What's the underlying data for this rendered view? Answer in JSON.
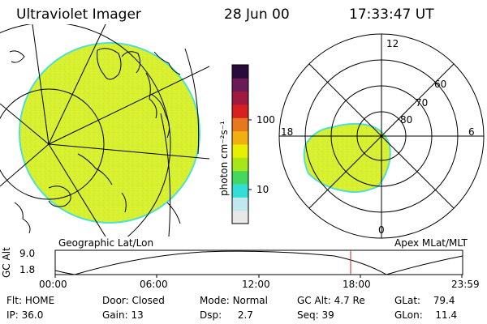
{
  "header": {
    "instrument": "Ultraviolet Imager",
    "date": "28 Jun 00",
    "time": "17:33:47 UT"
  },
  "colorbar": {
    "unit_label": "photon cm⁻²s⁻¹",
    "ticks": [
      "100",
      "10"
    ],
    "colors": [
      "#e8e8e8",
      "#bfe8ef",
      "#33ddd8",
      "#44d860",
      "#a8e61a",
      "#e6f000",
      "#f2b010",
      "#e6781e",
      "#d82020",
      "#a01a40",
      "#6b1a58",
      "#2a0a3a"
    ]
  },
  "geo_map": {
    "label": "Geographic Lat/Lon",
    "fill": "#d8f030",
    "edge": "#4fe0d0"
  },
  "polar_plot": {
    "label": "Apex MLat/MLT",
    "mlt_labels": {
      "top": "12",
      "left": "18",
      "right": "6",
      "bottom": "0"
    },
    "lat_labels": [
      "60",
      "70",
      "80"
    ]
  },
  "altitude_plot": {
    "axis_title": "GC Alt",
    "ticks": [
      "9.0",
      "1.8"
    ],
    "time_ticks": [
      "00:00",
      "06:00",
      "12:00",
      "18:00",
      "23:59"
    ],
    "current_time_color": "#cc2222"
  },
  "status": {
    "flt_label": "Flt:",
    "flt_value": "HOME",
    "ip_label": "IP:",
    "ip_value": "36.0",
    "door_label": "Door:",
    "door_value": "Closed",
    "gain_label": "Gain:",
    "gain_value": "13",
    "mode_label": "Mode:",
    "mode_value": "Normal",
    "dsp_label": "Dsp:",
    "dsp_value": "2.7",
    "gcalt_label": "GC Alt:",
    "gcalt_value": "4.7 Re",
    "seq_label": "Seq:",
    "seq_value": "39",
    "glat_label": "GLat:",
    "glat_value": "79.4",
    "glon_label": "GLon:",
    "glon_value": "11.4"
  }
}
